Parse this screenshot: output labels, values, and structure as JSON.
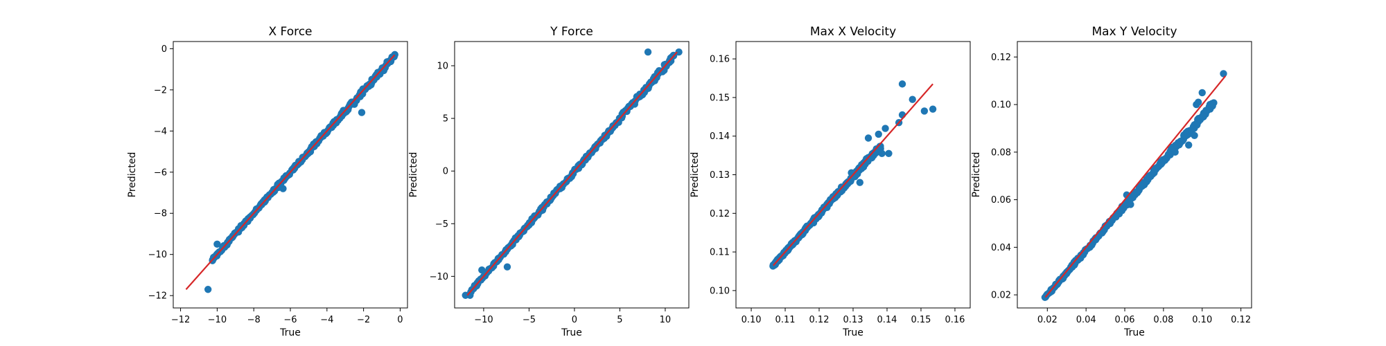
{
  "colors": {
    "points": "#1f77b4",
    "fit_line": "#d62728",
    "axes": "#000000",
    "background": "#ffffff"
  },
  "chart_data": [
    {
      "type": "scatter",
      "title": "X Force",
      "xlabel": "True",
      "ylabel": "Predicted",
      "xlim": [
        -12.4,
        0.4
      ],
      "ylim": [
        -12.6,
        0.35
      ],
      "xticks": [
        -12,
        -10,
        -8,
        -6,
        -4,
        -2,
        0
      ],
      "yticks": [
        -12,
        -10,
        -8,
        -6,
        -4,
        -2,
        0
      ],
      "xtick_labels": [
        "−12",
        "−10",
        "−8",
        "−6",
        "−4",
        "−2",
        "0"
      ],
      "ytick_labels": [
        "−12",
        "−10",
        "−8",
        "−6",
        "−4",
        "−2",
        "0"
      ],
      "fit_line": [
        [
          -11.7,
          -11.7
        ],
        [
          -0.3,
          -0.3
        ]
      ],
      "outliers": [
        [
          -10.5,
          -11.7
        ],
        [
          -10.0,
          -9.5
        ],
        [
          -9.6,
          -9.6
        ],
        [
          -8.7,
          -8.6
        ],
        [
          -6.7,
          -6.6
        ],
        [
          -6.4,
          -6.8
        ],
        [
          -2.5,
          -2.7
        ],
        [
          -2.1,
          -3.1
        ],
        [
          -0.3,
          -0.3
        ]
      ],
      "band": [
        [
          -10.3,
          -10.3
        ],
        [
          -0.3,
          -0.3
        ]
      ],
      "grid": false
    },
    {
      "type": "scatter",
      "title": "Y Force",
      "xlabel": "True",
      "ylabel": "Predicted",
      "xlim": [
        -13.2,
        12.6
      ],
      "ylim": [
        -13.0,
        12.3
      ],
      "xticks": [
        -10,
        -5,
        0,
        5,
        10
      ],
      "yticks": [
        -10,
        -5,
        0,
        5,
        10
      ],
      "xtick_labels": [
        "−10",
        "−5",
        "0",
        "5",
        "10"
      ],
      "ytick_labels": [
        "−10",
        "−5",
        "0",
        "5",
        "10"
      ],
      "fit_line": [
        [
          -11.8,
          -11.8
        ],
        [
          11.3,
          11.3
        ]
      ],
      "outliers": [
        [
          -12.0,
          -11.8
        ],
        [
          -11.5,
          -11.8
        ],
        [
          -10.2,
          -9.4
        ],
        [
          -7.4,
          -9.1
        ],
        [
          8.1,
          11.3
        ],
        [
          11.5,
          11.3
        ],
        [
          7.2,
          7.3
        ]
      ],
      "band": [
        [
          -11.5,
          -11.5
        ],
        [
          11.0,
          11.0
        ]
      ],
      "grid": false
    },
    {
      "type": "scatter",
      "title": "Max X Velocity",
      "xlabel": "True",
      "ylabel": "Predicted",
      "xlim": [
        0.0955,
        0.1645
      ],
      "ylim": [
        0.0955,
        0.1645
      ],
      "xticks": [
        0.1,
        0.11,
        0.12,
        0.13,
        0.14,
        0.15,
        0.16
      ],
      "yticks": [
        0.1,
        0.11,
        0.12,
        0.13,
        0.14,
        0.15,
        0.16
      ],
      "xtick_labels": [
        "0.10",
        "0.11",
        "0.12",
        "0.13",
        "0.14",
        "0.15",
        "0.16"
      ],
      "ytick_labels": [
        "0.10",
        "0.11",
        "0.12",
        "0.13",
        "0.14",
        "0.15",
        "0.16"
      ],
      "fit_line": [
        [
          0.1065,
          0.1065
        ],
        [
          0.1535,
          0.1535
        ]
      ],
      "outliers": [
        [
          0.1445,
          0.1535
        ],
        [
          0.1475,
          0.1495
        ],
        [
          0.151,
          0.1465
        ],
        [
          0.1535,
          0.147
        ],
        [
          0.1445,
          0.1455
        ],
        [
          0.1395,
          0.142
        ],
        [
          0.1385,
          0.1355
        ],
        [
          0.1375,
          0.1405
        ],
        [
          0.1345,
          0.1395
        ],
        [
          0.132,
          0.128
        ],
        [
          0.1295,
          0.1305
        ],
        [
          0.1405,
          0.1355
        ],
        [
          0.1435,
          0.1435
        ]
      ],
      "band": [
        [
          0.1065,
          0.1065
        ],
        [
          0.138,
          0.1375
        ]
      ],
      "grid": false
    },
    {
      "type": "scatter",
      "title": "Max Y Velocity",
      "xlabel": "True",
      "ylabel": "Predicted",
      "xlim": [
        0.0045,
        0.1255
      ],
      "ylim": [
        0.0145,
        0.1265
      ],
      "xticks": [
        0.02,
        0.04,
        0.06,
        0.08,
        0.1,
        0.12
      ],
      "yticks": [
        0.02,
        0.04,
        0.06,
        0.08,
        0.1,
        0.12
      ],
      "xtick_labels": [
        "0.02",
        "0.04",
        "0.06",
        "0.08",
        "0.10",
        "0.12"
      ],
      "ytick_labels": [
        "0.02",
        "0.04",
        "0.06",
        "0.08",
        "0.10",
        "0.12"
      ],
      "fit_line": [
        [
          0.019,
          0.019
        ],
        [
          0.112,
          0.112
        ]
      ],
      "outliers": [
        [
          0.111,
          0.113
        ],
        [
          0.1,
          0.105
        ],
        [
          0.097,
          0.1
        ],
        [
          0.104,
          0.1
        ],
        [
          0.096,
          0.087
        ],
        [
          0.093,
          0.083
        ],
        [
          0.086,
          0.08
        ],
        [
          0.084,
          0.082
        ],
        [
          0.075,
          0.073
        ],
        [
          0.072,
          0.069
        ],
        [
          0.068,
          0.066
        ],
        [
          0.063,
          0.058
        ],
        [
          0.061,
          0.062
        ],
        [
          0.098,
          0.101
        ]
      ],
      "band": [
        [
          0.019,
          0.019
        ],
        [
          0.106,
          0.101
        ]
      ],
      "grid": false
    }
  ]
}
